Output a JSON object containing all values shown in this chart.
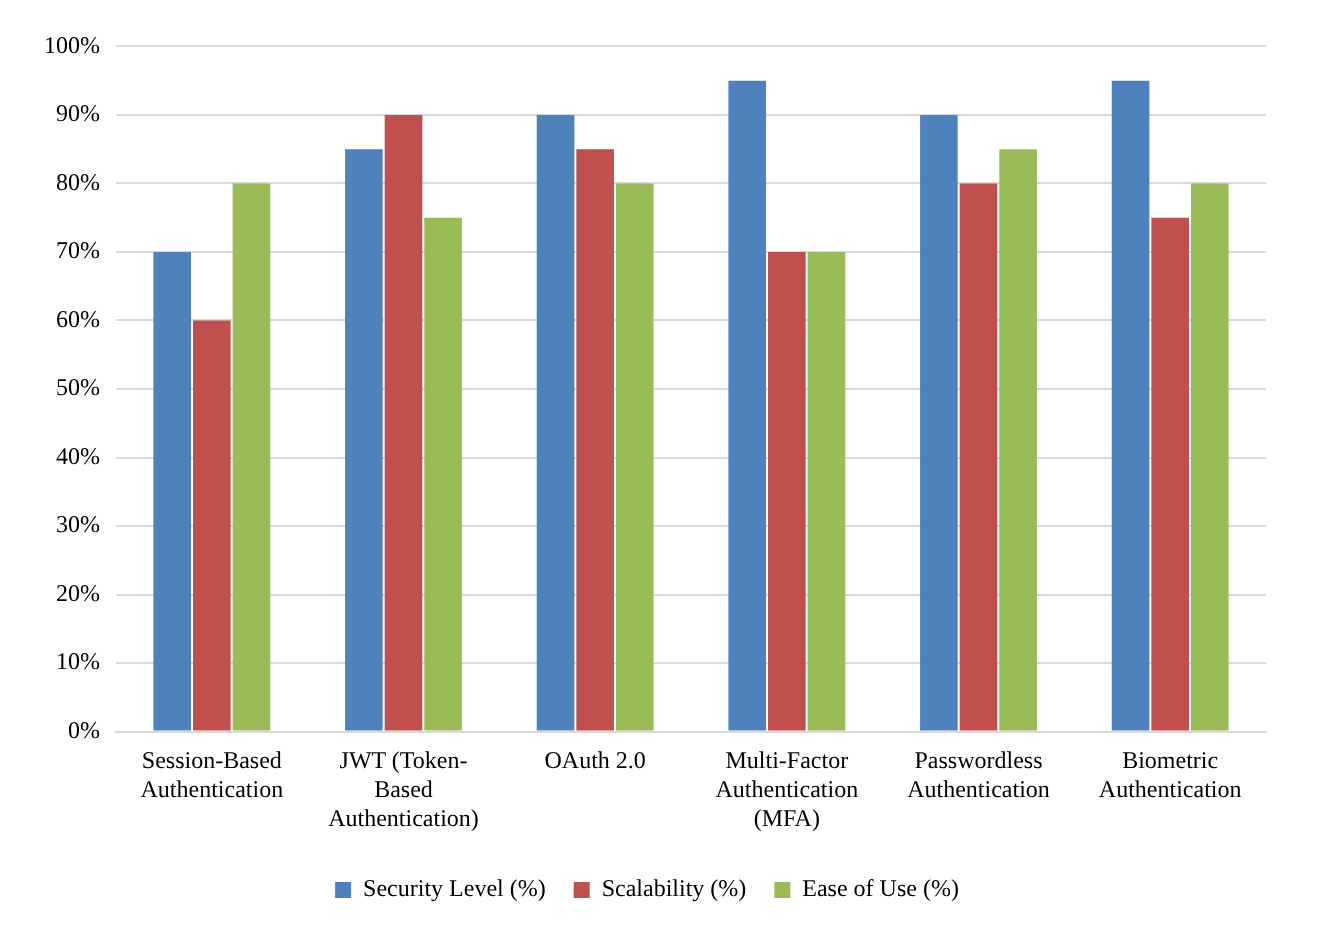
{
  "chart_data": {
    "type": "bar",
    "categories": [
      "Session-Based Authentication",
      "JWT (Token-Based Authentication)",
      "OAuth 2.0",
      "Multi-Factor Authentication (MFA)",
      "Passwordless Authentication",
      "Biometric Authentication"
    ],
    "series": [
      {
        "name": "Security Level (%)",
        "color": "#4f81bd",
        "values": [
          70,
          85,
          90,
          95,
          90,
          95
        ]
      },
      {
        "name": "Scalability (%)",
        "color": "#c0504d",
        "values": [
          60,
          90,
          85,
          70,
          80,
          75
        ]
      },
      {
        "name": "Ease of Use (%)",
        "color": "#9bbb59",
        "values": [
          80,
          75,
          80,
          70,
          85,
          80
        ]
      }
    ],
    "ylim": [
      0,
      100
    ],
    "yticks": [
      {
        "value": 0,
        "label": "0%"
      },
      {
        "value": 10,
        "label": "10%"
      },
      {
        "value": 20,
        "label": "20%"
      },
      {
        "value": 30,
        "label": "30%"
      },
      {
        "value": 40,
        "label": "40%"
      },
      {
        "value": 50,
        "label": "50%"
      },
      {
        "value": 60,
        "label": "60%"
      },
      {
        "value": 70,
        "label": "70%"
      },
      {
        "value": 80,
        "label": "80%"
      },
      {
        "value": 90,
        "label": "90%"
      },
      {
        "value": 100,
        "label": "100%"
      }
    ],
    "grid": "y",
    "legend": "bottom"
  }
}
